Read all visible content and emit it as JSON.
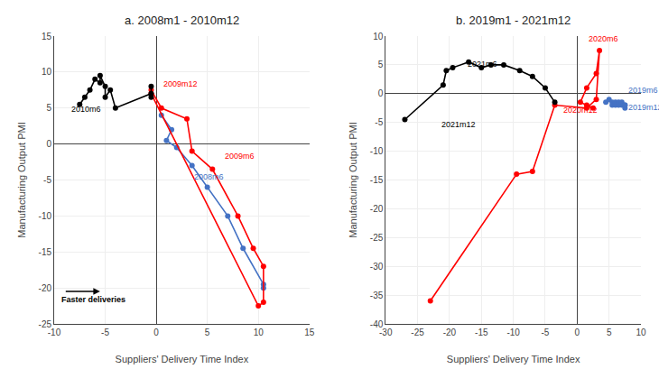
{
  "chart_data": [
    {
      "type": "line",
      "title": "a. 2008m1 - 2010m12",
      "x_label": "Suppliers' Delivery Time Index",
      "y_label": "Manufacturing Output PMI",
      "series": [
        {
          "color": "#4472C4",
          "marker": "circle",
          "x": [
            0.5,
            1.5,
            1.0,
            2.0,
            3.5,
            5.0,
            7.0,
            8.5,
            10.5,
            10.5
          ],
          "values": [
            4.0,
            2.0,
            0.5,
            -0.5,
            -3.0,
            -6.0,
            -10.0,
            -14.5,
            -19.5,
            -20.0
          ]
        },
        {
          "color": "#FF0000",
          "marker": "circle",
          "x": [
            -0.5,
            0.5,
            3.0,
            3.5,
            5.5,
            8.0,
            9.5,
            10.5,
            10.5,
            10.0,
            -0.5
          ],
          "values": [
            7.5,
            5.0,
            3.5,
            -1.0,
            -3.5,
            -10.0,
            -14.5,
            -17.0,
            -22.0,
            -22.5,
            7.0
          ]
        },
        {
          "color": "#000000",
          "marker": "circle",
          "x": [
            -7.5,
            -7.0,
            -6.5,
            -6.0,
            -5.5,
            -5.5,
            -5.0,
            -5.0,
            -4.5,
            -4.0,
            -0.5,
            -0.5,
            -0.5
          ],
          "values": [
            5.5,
            6.5,
            7.5,
            9.0,
            8.5,
            9.5,
            8.0,
            6.5,
            7.5,
            5.0,
            7.0,
            6.5,
            8.0
          ]
        }
      ],
      "annotations": [
        {
          "text": "2008m6",
          "x": 3.5,
          "y": -5.5,
          "color": "#4472C4"
        },
        {
          "text": "2009m6",
          "x": 6.5,
          "y": -2.5,
          "color": "#FF0000"
        },
        {
          "text": "2009m12",
          "x": 0.5,
          "y": 7.5,
          "color": "#FF0000"
        },
        {
          "text": "2010m6",
          "x": -8.5,
          "y": 4.0,
          "color": "#000000"
        },
        {
          "text": "Faster deliveries",
          "x": -9.5,
          "y": -22.5,
          "color": "#000000",
          "arrow": {
            "from": [
              -9.0,
              -20.5
            ],
            "to": [
              -5.5,
              -20.5
            ]
          }
        }
      ],
      "xlim": [
        -10,
        15
      ],
      "ylim": [
        -25,
        15
      ],
      "xticks": [
        -10,
        -5,
        0,
        5,
        10,
        15
      ],
      "yticks": [
        -25,
        -20,
        -15,
        -10,
        -5,
        0,
        5,
        10,
        15
      ],
      "grid": true
    },
    {
      "type": "line",
      "title": "b. 2019m1 - 2021m12",
      "x_label": "Suppliers' Delivery Time Index",
      "y_label": "Manufacturing Output PMI",
      "series": [
        {
          "color": "#4472C4",
          "marker": "circle",
          "x": [
            4.5,
            5.0,
            5.5,
            5.5,
            6.0,
            6.0,
            6.5,
            6.5,
            7.0,
            7.0,
            7.5,
            7.5,
            7.5
          ],
          "values": [
            -1.5,
            -1.0,
            -1.5,
            -2.0,
            -1.5,
            -2.0,
            -1.5,
            -2.0,
            -2.0,
            -1.5,
            -2.0,
            -2.5,
            -2.0
          ]
        },
        {
          "color": "#FF0000",
          "marker": "circle",
          "x": [
            -23.0,
            -9.5,
            -7.0,
            -3.5,
            1.5,
            3.0,
            3.5,
            3.0,
            1.5,
            0.5,
            1.5,
            2.5
          ],
          "values": [
            -36.0,
            -14.0,
            -13.5,
            -2.0,
            -2.5,
            -1.0,
            7.5,
            3.5,
            1.0,
            -1.5,
            -2.0,
            -2.5
          ]
        },
        {
          "color": "#000000",
          "marker": "circle",
          "x": [
            -27.0,
            -21.0,
            -20.5,
            -19.5,
            -17.0,
            -15.0,
            -13.5,
            -11.5,
            -9.0,
            -7.0,
            -5.0,
            -3.5
          ],
          "values": [
            -4.5,
            1.5,
            4.0,
            4.5,
            5.5,
            4.5,
            5.0,
            5.0,
            4.0,
            3.0,
            1.0,
            -1.5
          ]
        }
      ],
      "annotations": [
        {
          "text": "2019m6",
          "x": 7.8,
          "y": -0.5,
          "color": "#4472C4"
        },
        {
          "text": "2019m12",
          "x": 7.8,
          "y": -3.5,
          "color": "#4472C4"
        },
        {
          "text": "2020m6",
          "x": 1.5,
          "y": 8.5,
          "color": "#FF0000"
        },
        {
          "text": "2020m12",
          "x": -2.5,
          "y": -4.0,
          "color": "#FF0000"
        },
        {
          "text": "2021m6",
          "x": -17.5,
          "y": 4.0,
          "color": "#000000"
        },
        {
          "text": "2021m12",
          "x": -21.5,
          "y": -6.5,
          "color": "#000000"
        }
      ],
      "xlim": [
        -30,
        10
      ],
      "ylim": [
        -40,
        10
      ],
      "xticks": [
        -30,
        -25,
        -20,
        -15,
        -10,
        -5,
        0,
        5,
        10
      ],
      "yticks": [
        -40,
        -35,
        -30,
        -25,
        -20,
        -15,
        -10,
        -5,
        0,
        5,
        10
      ],
      "grid": true
    }
  ]
}
